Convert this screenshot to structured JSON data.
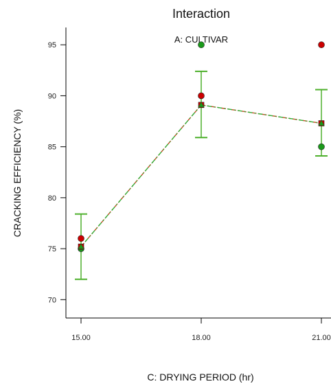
{
  "chart_data": {
    "type": "line",
    "title": "Interaction",
    "subtitle": "A: CULTIVAR",
    "xlabel": "C: DRYING PERIOD (hr)",
    "ylabel": "CRACKING EFFICIENCY (%)",
    "x_ticks": [
      "15.00",
      "18.00",
      "21.00"
    ],
    "x_values": [
      15,
      18,
      21
    ],
    "xlim": [
      15,
      21
    ],
    "y_ticks": [
      "70",
      "75",
      "80",
      "85",
      "90",
      "95"
    ],
    "ylim": [
      68.2,
      96.7
    ],
    "grid": false,
    "colors": {
      "series_a": "#cc0000",
      "series_b": "#1a9a1a",
      "fit_line_a": "#cc4422",
      "fit_line_b": "#33aa33",
      "error_bars": "#4caf2a"
    },
    "series": [
      {
        "marker": "square",
        "color": "#cc0000",
        "fitted": [
          75.2,
          89.1,
          87.3
        ]
      },
      {
        "marker": "triangle",
        "color": "#1a9a1a",
        "fitted": [
          75.2,
          89.1,
          87.3
        ]
      }
    ],
    "observations": [
      {
        "x": 15,
        "y": 76,
        "color": "#cc0000"
      },
      {
        "x": 15,
        "y": 75,
        "color": "#1a9a1a"
      },
      {
        "x": 18,
        "y": 90,
        "color": "#cc0000"
      },
      {
        "x": 18,
        "y": 95,
        "color": "#1a9a1a"
      },
      {
        "x": 21,
        "y": 95,
        "color": "#cc0000"
      },
      {
        "x": 21,
        "y": 85,
        "color": "#1a9a1a"
      }
    ],
    "error_bars": [
      {
        "x": 15,
        "low": 72.0,
        "high": 78.4
      },
      {
        "x": 18,
        "low": 85.9,
        "high": 92.4
      },
      {
        "x": 21,
        "low": 84.1,
        "high": 90.6
      }
    ]
  }
}
